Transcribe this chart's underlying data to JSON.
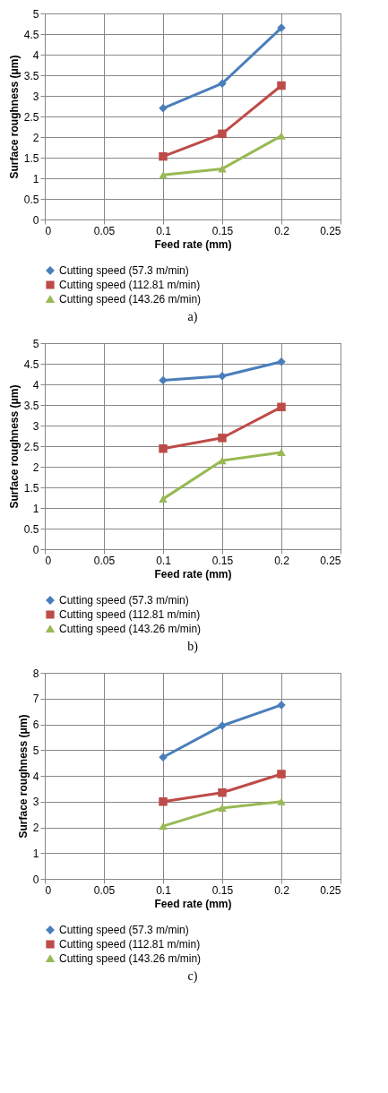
{
  "chart_data": [
    {
      "type": "line",
      "xlabel": "Feed rate (mm)",
      "ylabel": "Surface roughness (μm)",
      "annotations": [
        "a)"
      ],
      "x": [
        0.1,
        0.15,
        0.2
      ],
      "xlim": [
        0,
        0.25
      ],
      "xticks": [
        0,
        0.05,
        0.1,
        0.15,
        0.2,
        0.25
      ],
      "ylim": [
        0,
        5
      ],
      "yticks": [
        0,
        0.5,
        1,
        1.5,
        2,
        2.5,
        3,
        3.5,
        4,
        4.5,
        5
      ],
      "grid": true,
      "legend": "bottom",
      "series": [
        {
          "name": "Cutting speed (57.3 m/min)",
          "color": "#4a7ebb",
          "marker": "diamond",
          "values": [
            2.7,
            3.3,
            4.65
          ]
        },
        {
          "name": "Cutting speed (112.81 m/min)",
          "color": "#be4b48",
          "marker": "square",
          "values": [
            1.53,
            2.08,
            3.25
          ]
        },
        {
          "name": "Cutting speed (143.26 m/min)",
          "color": "#98b954",
          "marker": "triangle",
          "values": [
            1.08,
            1.23,
            2.03
          ]
        }
      ]
    },
    {
      "type": "line",
      "xlabel": "Feed rate (mm)",
      "ylabel": "Surface roughness (μm)",
      "annotations": [
        "b)"
      ],
      "x": [
        0.1,
        0.15,
        0.2
      ],
      "xlim": [
        0,
        0.25
      ],
      "xticks": [
        0,
        0.05,
        0.1,
        0.15,
        0.2,
        0.25
      ],
      "ylim": [
        0,
        5
      ],
      "yticks": [
        0,
        0.5,
        1,
        1.5,
        2,
        2.5,
        3,
        3.5,
        4,
        4.5,
        5
      ],
      "grid": true,
      "legend": "bottom",
      "series": [
        {
          "name": "Cutting speed (57.3 m/min)",
          "color": "#4a7ebb",
          "marker": "diamond",
          "values": [
            4.1,
            4.2,
            4.55
          ]
        },
        {
          "name": "Cutting speed (112.81 m/min)",
          "color": "#be4b48",
          "marker": "square",
          "values": [
            2.44,
            2.7,
            3.45
          ]
        },
        {
          "name": "Cutting speed (143.26 m/min)",
          "color": "#98b954",
          "marker": "triangle",
          "values": [
            1.22,
            2.15,
            2.35
          ]
        }
      ]
    },
    {
      "type": "line",
      "xlabel": "Feed rate (mm)",
      "ylabel": "Surface roughness (μm)",
      "annotations": [
        "c)"
      ],
      "x": [
        0.1,
        0.15,
        0.2
      ],
      "xlim": [
        0,
        0.25
      ],
      "xticks": [
        0,
        0.05,
        0.1,
        0.15,
        0.2,
        0.25
      ],
      "ylim": [
        0,
        8
      ],
      "yticks": [
        0,
        1,
        2,
        3,
        4,
        5,
        6,
        7,
        8
      ],
      "grid": true,
      "legend": "bottom",
      "series": [
        {
          "name": "Cutting speed (57.3 m/min)",
          "color": "#4a7ebb",
          "marker": "diamond",
          "values": [
            4.72,
            5.95,
            6.75
          ]
        },
        {
          "name": "Cutting speed (112.81 m/min)",
          "color": "#be4b48",
          "marker": "square",
          "values": [
            3.0,
            3.35,
            4.07
          ]
        },
        {
          "name": "Cutting speed (143.26 m/min)",
          "color": "#98b954",
          "marker": "triangle",
          "values": [
            2.05,
            2.75,
            3.0
          ]
        }
      ]
    }
  ]
}
